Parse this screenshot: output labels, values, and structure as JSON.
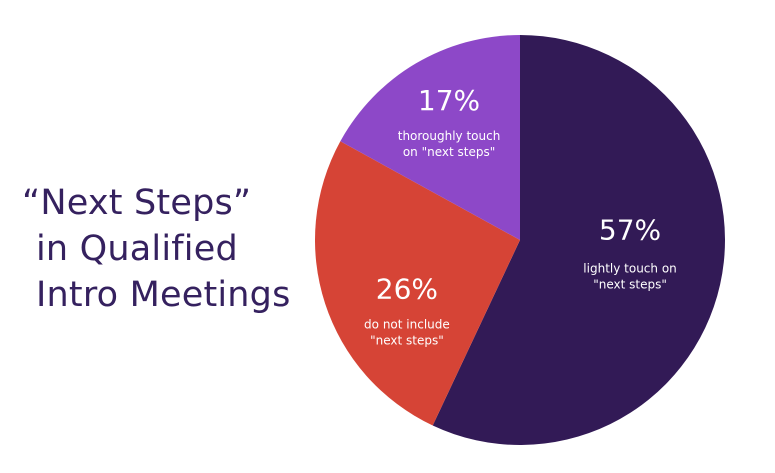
{
  "chart_data": {
    "type": "pie",
    "title": "“Next Steps” in Qualified Intro Meetings",
    "title_lines": [
      "“Next Steps”",
      "in Qualified",
      "Intro Meetings"
    ],
    "legend": "none",
    "slices": [
      {
        "value": 57,
        "percent_label": "57%",
        "description_lines": [
          "lightly touch on",
          "\"next steps\""
        ],
        "color": "#321a56"
      },
      {
        "value": 26,
        "percent_label": "26%",
        "description_lines": [
          "do not include",
          "\"next steps\""
        ],
        "color": "#d64436"
      },
      {
        "value": 17,
        "percent_label": "17%",
        "description_lines": [
          "thoroughly touch",
          "on \"next steps\""
        ],
        "color": "#8d48c8"
      }
    ]
  }
}
